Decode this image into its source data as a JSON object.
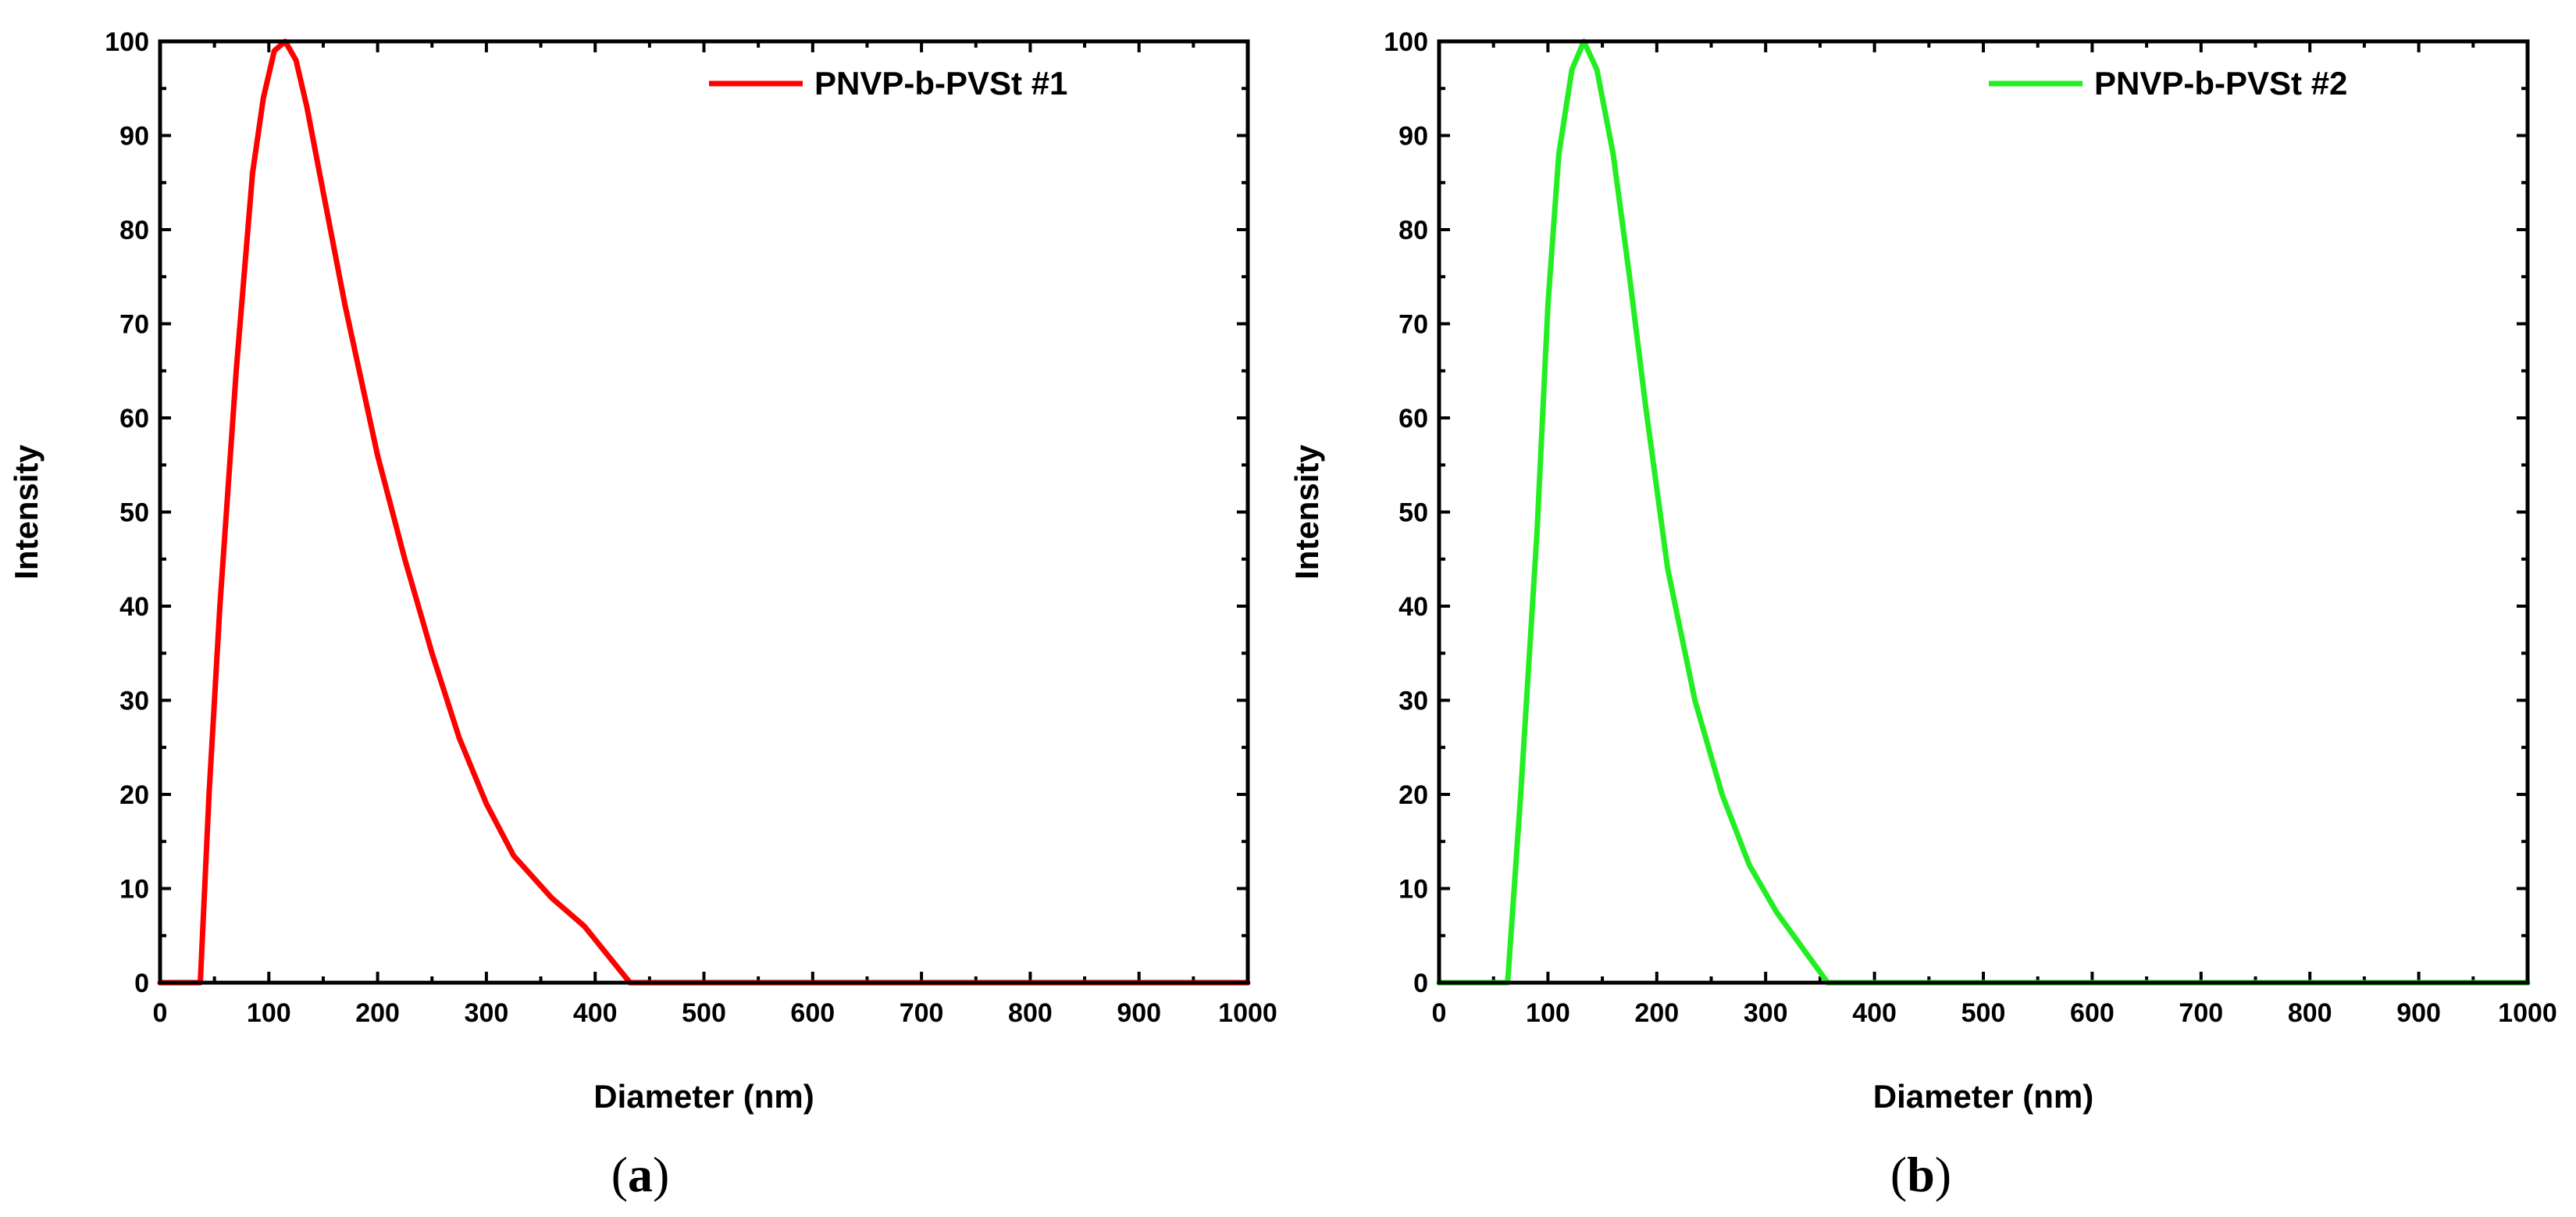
{
  "chart_data": [
    {
      "type": "line",
      "panel": "a",
      "caption_letter": "a",
      "xlabel": "Diameter (nm)",
      "ylabel": "Intensity",
      "xlim": [
        0,
        1000
      ],
      "ylim": [
        0,
        100
      ],
      "xticks": [
        0,
        100,
        200,
        300,
        400,
        500,
        600,
        700,
        800,
        900,
        1000
      ],
      "yticks": [
        0,
        10,
        20,
        30,
        40,
        50,
        60,
        70,
        80,
        90,
        100
      ],
      "grid": false,
      "legend_position": "top-right",
      "series": [
        {
          "name": "PNVP-b-PVSt #1",
          "color": "#ff0000",
          "x": [
            0,
            37,
            45,
            55,
            70,
            85,
            95,
            105,
            115,
            125,
            135,
            150,
            170,
            200,
            225,
            250,
            275,
            300,
            325,
            360,
            390,
            432,
            500,
            600,
            700,
            800,
            900,
            1000
          ],
          "y": [
            0,
            0,
            20,
            40,
            65,
            86,
            94,
            99,
            100,
            98,
            93,
            84,
            72,
            56,
            45,
            35,
            26,
            19,
            13.5,
            9,
            6,
            0,
            0,
            0,
            0,
            0,
            0,
            0
          ]
        }
      ]
    },
    {
      "type": "line",
      "panel": "b",
      "caption_letter": "b",
      "xlabel": "Diameter (nm)",
      "ylabel": "Intensity",
      "xlim": [
        0,
        1000
      ],
      "ylim": [
        0,
        100
      ],
      "xticks": [
        0,
        100,
        200,
        300,
        400,
        500,
        600,
        700,
        800,
        900,
        1000
      ],
      "yticks": [
        0,
        10,
        20,
        30,
        40,
        50,
        60,
        70,
        80,
        90,
        100
      ],
      "grid": false,
      "legend_position": "top-right",
      "series": [
        {
          "name": "PNVP-b-PVSt #2",
          "color": "#22ee22",
          "x": [
            0,
            63,
            75,
            90,
            100,
            110,
            122,
            133,
            145,
            160,
            175,
            190,
            210,
            235,
            260,
            285,
            310,
            335,
            357,
            400,
            500,
            600,
            700,
            800,
            900,
            1000
          ],
          "y": [
            0,
            0,
            20,
            48,
            72,
            88,
            97,
            100,
            97,
            88,
            75,
            61,
            44,
            30,
            20,
            12.5,
            7.5,
            3.5,
            0,
            0,
            0,
            0,
            0,
            0,
            0,
            0
          ]
        }
      ]
    }
  ]
}
